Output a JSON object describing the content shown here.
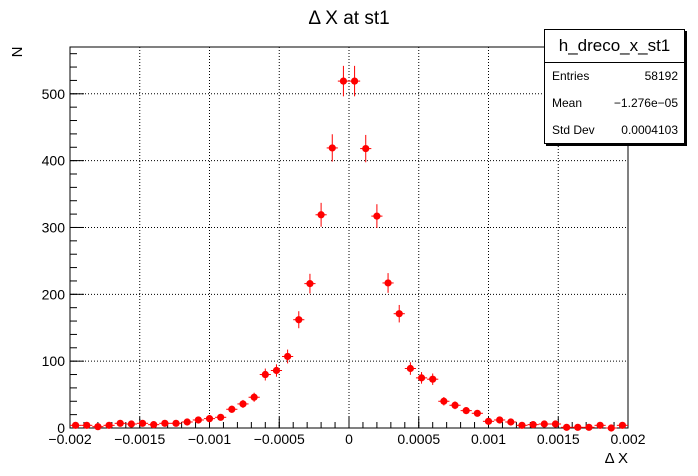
{
  "chart_data": {
    "type": "scatter",
    "title": "Δ X at st1",
    "xlabel": "Δ X",
    "ylabel": "N",
    "xlim": [
      -0.002,
      0.002
    ],
    "ylim": [
      0,
      570
    ],
    "grid": true,
    "xticks": [
      -0.002,
      -0.0015,
      -0.001,
      -0.0005,
      0,
      0.0005,
      0.001,
      0.0015,
      0.002
    ],
    "xtick_labels": [
      "−0.002",
      "−0.0015",
      "−0.001",
      "−0.0005",
      "0",
      "0.0005",
      "0.001",
      "0.0015",
      "0.002"
    ],
    "yticks": [
      0,
      100,
      200,
      300,
      400,
      500
    ],
    "ytick_labels": [
      "0",
      "100",
      "200",
      "300",
      "400",
      "500"
    ],
    "marker_color": "#ff0000",
    "bin_width": 8e-05,
    "series": [
      {
        "x": [
          -0.00196,
          -0.00188,
          -0.0018,
          -0.00172,
          -0.00164,
          -0.00156,
          -0.00148,
          -0.0014,
          -0.00132,
          -0.00124,
          -0.00116,
          -0.00108,
          -0.001,
          -0.00092,
          -0.00084,
          -0.00076,
          -0.00068,
          -0.0006,
          -0.00052,
          -0.00044,
          -0.00036,
          -0.00028,
          -0.0002,
          -0.00012,
          -4e-05,
          4e-05,
          0.00012,
          0.0002,
          0.00028,
          0.00036,
          0.00044,
          0.00052,
          0.0006,
          0.00068,
          0.00076,
          0.00084,
          0.00092,
          0.001,
          0.00108,
          0.00116,
          0.00124,
          0.00132,
          0.0014,
          0.00148,
          0.00156,
          0.00164,
          0.00172,
          0.0018,
          0.00188,
          0.00196
        ],
        "y": [
          4,
          4,
          2,
          4,
          7,
          6,
          7,
          5,
          7,
          7,
          9,
          12,
          14,
          16,
          28,
          36,
          46,
          80,
          86,
          107,
          162,
          216,
          319,
          419,
          519,
          519,
          418,
          317,
          217,
          171,
          89,
          75,
          73,
          40,
          34,
          26,
          22,
          10,
          12,
          9,
          4,
          5,
          6,
          6,
          1,
          1,
          1,
          4,
          0,
          4
        ]
      }
    ]
  },
  "stats_box": {
    "title": "h_dreco_x_st1",
    "rows": [
      {
        "label": "Entries",
        "value": "58192"
      },
      {
        "label": "Mean",
        "value": "−1.276e−05"
      },
      {
        "label": "Std Dev",
        "value": "0.0004103"
      }
    ]
  }
}
